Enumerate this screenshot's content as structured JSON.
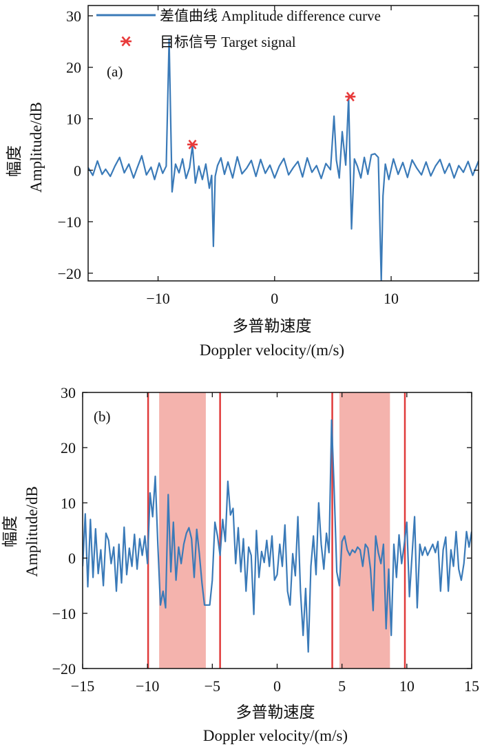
{
  "chart_data": [
    {
      "type": "line",
      "panel_label": "(a)",
      "ylabel_cn": "幅度",
      "ylabel_en": "Amplitude/dB",
      "xlabel_cn": "多普勒速度",
      "xlabel_en": "Doppler velocity/(m/s)",
      "xlim": [
        -16,
        17.5
      ],
      "ylim": [
        -21.5,
        32
      ],
      "xticks": [
        -10,
        0,
        10
      ],
      "yticks": [
        -20,
        -10,
        0,
        10,
        20,
        30
      ],
      "xtick_labels": [
        "−10",
        "0",
        "10"
      ],
      "ytick_labels": [
        "−20",
        "−10",
        "0",
        "10",
        "20",
        "30"
      ],
      "legend_position": "top-right",
      "legend": [
        {
          "label": "差值曲线 Amplitude difference curve",
          "symbol": "line",
          "color": "#3a7ab8"
        },
        {
          "label": "目标信号 Target signal",
          "symbol": "asterisk",
          "color": "#e83b3b"
        }
      ],
      "series": [
        {
          "name": "差值曲线 Amplitude difference curve",
          "color": "#3a7ab8",
          "x": [
            -16,
            -15.6,
            -15.2,
            -14.8,
            -14.5,
            -14.1,
            -13.7,
            -13.3,
            -12.9,
            -12.5,
            -12.1,
            -11.8,
            -11.4,
            -11.0,
            -10.6,
            -10.3,
            -9.9,
            -9.6,
            -9.3,
            -9.05,
            -8.8,
            -8.5,
            -8.2,
            -7.9,
            -7.6,
            -7.3,
            -7.05,
            -6.8,
            -6.5,
            -6.2,
            -5.9,
            -5.6,
            -5.4,
            -5.25,
            -5.1,
            -4.9,
            -4.6,
            -4.3,
            -4.0,
            -3.6,
            -3.2,
            -2.8,
            -2.4,
            -2.0,
            -1.6,
            -1.2,
            -0.8,
            -0.4,
            0.0,
            0.4,
            0.8,
            1.2,
            1.6,
            2.0,
            2.4,
            2.8,
            3.2,
            3.6,
            4.0,
            4.4,
            4.8,
            5.1,
            5.3,
            5.55,
            5.8,
            6.1,
            6.35,
            6.6,
            6.85,
            7.1,
            7.4,
            7.7,
            8.0,
            8.3,
            8.6,
            8.9,
            9.15,
            9.3,
            9.5,
            9.8,
            10.2,
            10.6,
            11.0,
            11.4,
            11.8,
            12.2,
            12.6,
            13.0,
            13.4,
            13.8,
            14.2,
            14.6,
            15.0,
            15.4,
            15.8,
            16.2,
            16.6,
            17.0,
            17.5
          ],
          "y": [
            0.5,
            -1.0,
            1.8,
            -0.8,
            0.2,
            -1.2,
            0.8,
            2.5,
            -0.5,
            1.2,
            -1.5,
            0.4,
            2.8,
            -0.9,
            0.6,
            -1.8,
            1.4,
            -0.6,
            0.8,
            25.5,
            -4.2,
            1.2,
            -0.5,
            2.2,
            -1.6,
            0.5,
            4.8,
            -2.5,
            0.8,
            -1.8,
            1.2,
            -3.5,
            -1.0,
            -14.8,
            -1.2,
            0.9,
            2.4,
            -0.8,
            1.6,
            -1.5,
            2.6,
            -0.7,
            0.4,
            1.9,
            -1.2,
            2.1,
            -0.6,
            1.0,
            -1.5,
            0.8,
            2.3,
            -0.9,
            0.5,
            1.7,
            -1.3,
            2.4,
            -0.4,
            0.9,
            -1.6,
            1.3,
            0.1,
            10.5,
            2.0,
            -1.5,
            7.5,
            1.0,
            14.3,
            -11.4,
            2.2,
            0.8,
            -1.5,
            2.5,
            -0.8,
            3.0,
            3.2,
            2.5,
            -21.5,
            -5.0,
            1.2,
            -1.8,
            2.2,
            -0.8,
            1.5,
            -1.4,
            2.0,
            0.4,
            -0.9,
            1.6,
            -1.1,
            0.8,
            2.1,
            -0.6,
            1.3,
            -1.5,
            0.9,
            -0.4,
            1.7,
            -1.0,
            1.8
          ]
        },
        {
          "name": "目标信号 Target signal",
          "color": "#e83b3b",
          "marker": "asterisk",
          "x": [
            -7.05,
            6.5
          ],
          "y": [
            5.0,
            14.3
          ]
        }
      ]
    },
    {
      "type": "line",
      "panel_label": "(b)",
      "ylabel_cn": "幅度",
      "ylabel_en": "Amplitude/dB",
      "xlabel_cn": "多普勒速度",
      "xlabel_en": "Doppler velocity/(m/s)",
      "xlim": [
        -15,
        15
      ],
      "ylim": [
        -20,
        30
      ],
      "xticks": [
        -15,
        -10,
        -5,
        0,
        5,
        10,
        15
      ],
      "yticks": [
        -20,
        -10,
        0,
        10,
        20,
        30
      ],
      "xtick_labels": [
        "−15",
        "−10",
        "−5",
        "0",
        "5",
        "10",
        "15"
      ],
      "ytick_labels": [
        "−20",
        "−10",
        "0",
        "10",
        "20",
        "30"
      ],
      "shaded_bands": [
        {
          "x0": -9.1,
          "x1": -5.5,
          "color": "#f4b3ad"
        },
        {
          "x0": 4.8,
          "x1": 8.7,
          "color": "#f4b3ad"
        }
      ],
      "vertical_lines": [
        {
          "x": -9.95,
          "color": "#e03a3a"
        },
        {
          "x": -4.4,
          "color": "#e03a3a"
        },
        {
          "x": 4.25,
          "color": "#e03a3a"
        },
        {
          "x": 9.85,
          "color": "#e03a3a"
        }
      ],
      "series": [
        {
          "color": "#3a7ab8",
          "x": [
            -15,
            -14.8,
            -14.6,
            -14.4,
            -14.2,
            -14.0,
            -13.8,
            -13.6,
            -13.4,
            -13.2,
            -13.0,
            -12.8,
            -12.6,
            -12.4,
            -12.2,
            -12.0,
            -11.8,
            -11.6,
            -11.4,
            -11.2,
            -11.0,
            -10.8,
            -10.6,
            -10.4,
            -10.2,
            -10.0,
            -9.8,
            -9.6,
            -9.4,
            -9.2,
            -9.0,
            -8.8,
            -8.6,
            -8.4,
            -8.2,
            -8.0,
            -7.8,
            -7.6,
            -7.4,
            -7.2,
            -7.0,
            -6.8,
            -6.6,
            -6.4,
            -6.2,
            -6.0,
            -5.8,
            -5.6,
            -5.4,
            -5.2,
            -5.0,
            -4.8,
            -4.6,
            -4.4,
            -4.2,
            -4.0,
            -3.8,
            -3.6,
            -3.4,
            -3.2,
            -3.0,
            -2.8,
            -2.6,
            -2.4,
            -2.2,
            -2.0,
            -1.8,
            -1.6,
            -1.4,
            -1.2,
            -1.0,
            -0.8,
            -0.6,
            -0.4,
            -0.2,
            0.0,
            0.2,
            0.4,
            0.6,
            0.8,
            1.0,
            1.2,
            1.4,
            1.6,
            1.8,
            2.0,
            2.2,
            2.4,
            2.6,
            2.8,
            3.0,
            3.2,
            3.4,
            3.6,
            3.8,
            4.0,
            4.2,
            4.4,
            4.6,
            4.8,
            5.0,
            5.2,
            5.4,
            5.6,
            5.8,
            6.0,
            6.2,
            6.4,
            6.6,
            6.8,
            7.0,
            7.2,
            7.4,
            7.6,
            7.8,
            8.0,
            8.2,
            8.4,
            8.6,
            8.8,
            9.0,
            9.2,
            9.4,
            9.6,
            9.8,
            10.0,
            10.2,
            10.4,
            10.6,
            10.8,
            11.0,
            11.2,
            11.4,
            11.6,
            11.8,
            12.0,
            12.2,
            12.4,
            12.6,
            12.8,
            13.0,
            13.2,
            13.4,
            13.6,
            13.8,
            14.0,
            14.2,
            14.4,
            14.6,
            14.8,
            15.0
          ],
          "y": [
            -1.5,
            8.0,
            -5.2,
            7.0,
            -3.5,
            5.3,
            -2.8,
            1.5,
            -5.0,
            4.5,
            3.2,
            -1.0,
            2.0,
            -6.0,
            2.5,
            -4.5,
            5.6,
            -3.0,
            1.8,
            -1.5,
            4.3,
            -2.0,
            3.5,
            0.5,
            4.0,
            -1.0,
            11.8,
            7.5,
            14.8,
            2.5,
            -8.5,
            -6.0,
            -9.0,
            11.5,
            -2.5,
            6.5,
            -4.0,
            2.0,
            -1.0,
            2.5,
            4.5,
            5.5,
            3.5,
            -3.5,
            5.2,
            0.8,
            -4.5,
            -8.5,
            -8.5,
            -8.5,
            -4.0,
            6.5,
            4.0,
            0.5,
            7.0,
            3.0,
            13.9,
            7.8,
            9.0,
            -1.0,
            5.5,
            -2.5,
            3.5,
            -6.0,
            2.0,
            0.5,
            -10.2,
            5.0,
            -3.5,
            1.2,
            -0.8,
            3.2,
            -1.5,
            4.0,
            -4.0,
            -3.0,
            2.5,
            -1.5,
            6.0,
            -6.0,
            -8.5,
            0.8,
            -3.2,
            7.5,
            -6.0,
            -14.0,
            -5.5,
            -17.0,
            -1.5,
            4.0,
            -3.0,
            10.0,
            2.5,
            -2.0,
            4.5,
            1.0,
            25.0,
            12.0,
            -2.5,
            -5.0,
            3.0,
            4.0,
            1.5,
            0.5,
            1.5,
            1.0,
            2.0,
            1.5,
            -1.5,
            2.5,
            1.8,
            -2.0,
            -9.5,
            4.0,
            1.0,
            -1.0,
            2.5,
            -12.8,
            -2.0,
            -14.0,
            2.5,
            -3.5,
            4.2,
            -1.0,
            2.5,
            6.5,
            -7.0,
            0.5,
            7.5,
            -9.0,
            2.5,
            0.5,
            2.0,
            0.5,
            1.5,
            2.5,
            1.0,
            3.0,
            -6.0,
            1.5,
            3.8,
            -6.0,
            1.5,
            -1.5,
            4.8,
            -2.0,
            -4.0,
            -1.0,
            4.8,
            2.0,
            4.8
          ]
        }
      ]
    }
  ]
}
